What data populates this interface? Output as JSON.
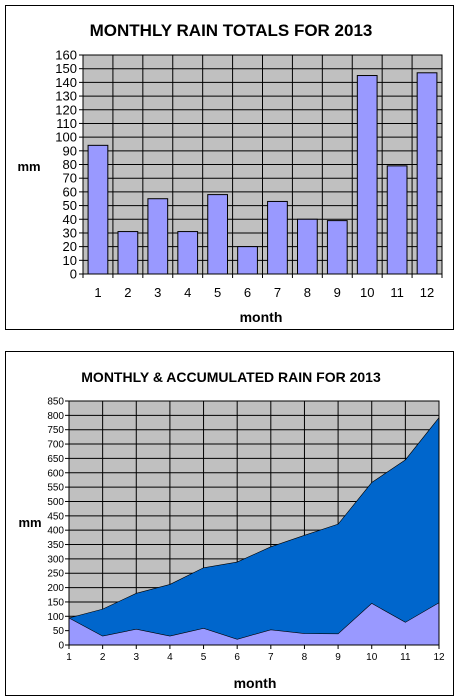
{
  "chart_data": [
    {
      "type": "bar",
      "title": "MONTHLY RAIN TOTALS FOR 2013",
      "xlabel": "month",
      "ylabel": "mm",
      "categories": [
        "1",
        "2",
        "3",
        "4",
        "5",
        "6",
        "7",
        "8",
        "9",
        "10",
        "11",
        "12"
      ],
      "values": [
        94,
        31,
        55,
        31,
        58,
        20,
        53,
        40,
        39,
        145,
        79,
        147
      ],
      "ylim": [
        0,
        160
      ],
      "ytick_step": 10,
      "grid": true,
      "colors": {
        "plot_bg": "#C0C0C0",
        "bar": "#9999FF"
      }
    },
    {
      "type": "area",
      "title": "MONTHLY & ACCUMULATED RAIN FOR 2013",
      "xlabel": "month",
      "ylabel": "mm",
      "categories": [
        "1",
        "2",
        "3",
        "4",
        "5",
        "6",
        "7",
        "8",
        "9",
        "10",
        "11",
        "12"
      ],
      "series": [
        {
          "values": [
            94,
            125,
            180,
            211,
            269,
            289,
            342,
            382,
            421,
            566,
            645,
            792
          ]
        },
        {
          "values": [
            94,
            31,
            55,
            31,
            58,
            20,
            53,
            40,
            39,
            145,
            79,
            147
          ]
        }
      ],
      "ylim": [
        0,
        850
      ],
      "ytick_step": 50,
      "grid": true,
      "colors": {
        "plot_bg": "#C0C0C0",
        "accumulated": "#0066CC",
        "monthly": "#9999FF"
      }
    }
  ]
}
